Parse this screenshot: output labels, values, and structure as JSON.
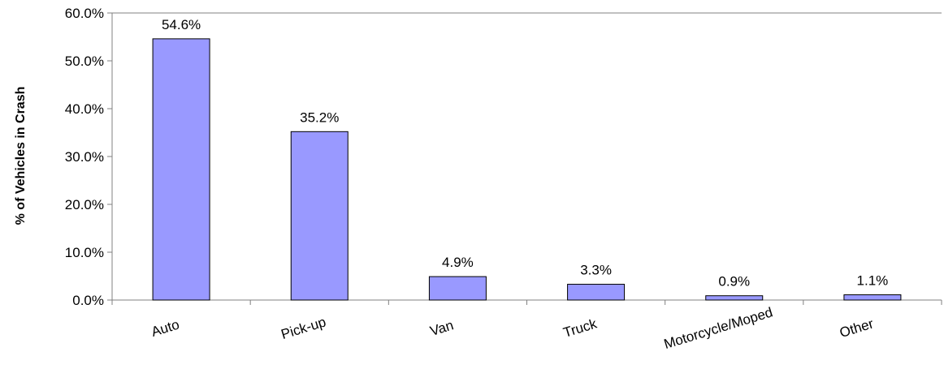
{
  "chart_data": {
    "type": "bar",
    "title": "",
    "xlabel": "",
    "ylabel": "% of Vehicles  in Crash",
    "categories": [
      "Auto",
      "Pick-up",
      "Van",
      "Truck",
      "Motorcycle/Moped",
      "Other"
    ],
    "values": [
      54.6,
      35.2,
      4.9,
      3.3,
      0.9,
      1.1
    ],
    "data_labels": [
      "54.6%",
      "35.2%",
      "4.9%",
      "3.3%",
      "0.9%",
      "1.1%"
    ],
    "ylim": [
      0,
      60
    ],
    "yticks": [
      0,
      10,
      20,
      30,
      40,
      50,
      60
    ],
    "ytick_labels": [
      "0.0%",
      "10.0%",
      "20.0%",
      "30.0%",
      "40.0%",
      "50.0%",
      "60.0%"
    ],
    "grid": false,
    "legend": "none",
    "colors": {
      "bar_fill": "#9999FF",
      "bar_stroke": "#000000",
      "axis": "#808080"
    }
  }
}
